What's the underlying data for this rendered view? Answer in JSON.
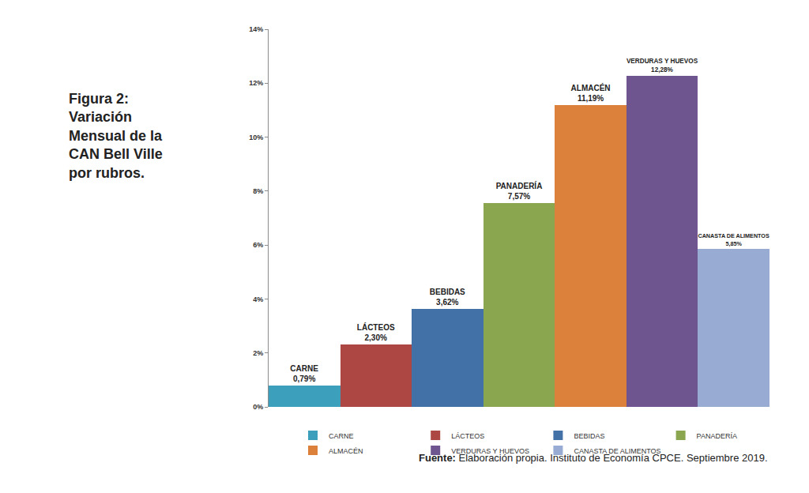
{
  "chart_data": {
    "type": "bar",
    "title": "Figura 2:\nVariación\nMensual de la\nCAN Bell Ville\npor rubros.",
    "categories": [
      "CARNE",
      "LÁCTEOS",
      "BEBIDAS",
      "PANADERÍA",
      "ALMACÉN",
      "VERDURAS Y HUEVOS",
      "CANASTA DE ALIMENTOS"
    ],
    "values": [
      0.79,
      2.3,
      3.62,
      7.57,
      11.19,
      12.28,
      5.85
    ],
    "value_labels": [
      "0,79%",
      "2,30%",
      "3,62%",
      "7,57%",
      "11,19%",
      "12,28%",
      "5,85%"
    ],
    "colors": [
      "#3c9fbb",
      "#ad4744",
      "#4271a8",
      "#8aa64f",
      "#dc813b",
      "#6f558f",
      "#97abd3"
    ],
    "ylim": [
      0,
      14
    ],
    "yticks": [
      {
        "value": 0,
        "label": "0%"
      },
      {
        "value": 2,
        "label": "2%"
      },
      {
        "value": 4,
        "label": "4%"
      },
      {
        "value": 6,
        "label": "6%"
      },
      {
        "value": 8,
        "label": "8%"
      },
      {
        "value": 10,
        "label": "10%"
      },
      {
        "value": 12,
        "label": "12%"
      },
      {
        "value": 14,
        "label": "14%"
      }
    ],
    "grid": false,
    "legend": "bottom",
    "data_labels": true,
    "tick_labels": "y",
    "annotations": [
      {
        "text": "Fuente: Elaboración propia. Instituto de Economía CPCE. Septiembre 2019."
      }
    ]
  }
}
